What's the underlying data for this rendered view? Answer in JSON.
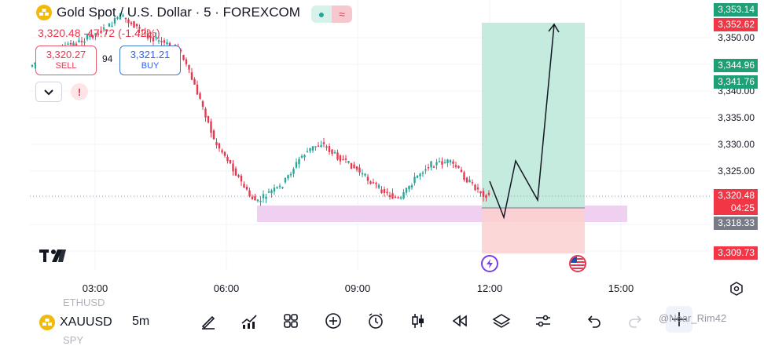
{
  "header": {
    "title": "Gold Spot / U.S. Dollar · 5 · FOREXCOM",
    "price_change": "3,320.48 -47.72 (-1.42%)"
  },
  "trade": {
    "sell_price": "3,320.27",
    "sell_label": "SELL",
    "spread": "94",
    "buy_price": "3,321.21",
    "buy_label": "BUY"
  },
  "price_axis": {
    "ticks": [
      "3,350.00",
      "3,340.00",
      "3,335.00",
      "3,330.00",
      "3,325.00"
    ],
    "labels": {
      "tp_top": "3,353.14",
      "prev": "3,352.62",
      "level_a": "3,344.96",
      "level_b": "3,341.76",
      "last": "3,320.48",
      "countdown": "04:25",
      "entry": "3,318.33",
      "stop": "3,309.73"
    }
  },
  "time_axis": [
    "03:00",
    "06:00",
    "09:00",
    "12:00",
    "15:00"
  ],
  "bottom": {
    "symbol": "XAUUSD",
    "timeframe": "5m",
    "ghost_above": "ETHUSD",
    "ghost_below": "SPY",
    "watermark": "@Near_Rim42"
  },
  "icons": [
    "gold-logo-icon",
    "tradingview-logo-icon",
    "chevron-down-icon",
    "alert-icon",
    "settings-icon",
    "lightning-icon",
    "us-flag-icon",
    "brush-icon",
    "indicators-icon",
    "layouts-icon",
    "plus-icon",
    "alarm-icon",
    "candles-icon",
    "replay-icon",
    "layers-icon",
    "settings-sliders-icon",
    "undo-icon",
    "redo-icon",
    "crosshair-icon"
  ],
  "colors": {
    "up": "#26a69a",
    "down": "#e63950",
    "tp_zone": "#c8ede0",
    "sl_zone": "#fde1e1",
    "support_zone": "#ecc8ee"
  },
  "chart_data": {
    "type": "candlestick",
    "instrument": "XAUUSD",
    "interval": "5m",
    "ylim": [
      3305,
      3360
    ],
    "support_zone": [
      3316.5,
      3319.5
    ],
    "position": {
      "entry": 3318.33,
      "take_profit": 3353.14,
      "stop": 3309.73
    },
    "projection": [
      3324,
      3316,
      3328,
      3319,
      3353
    ]
  }
}
